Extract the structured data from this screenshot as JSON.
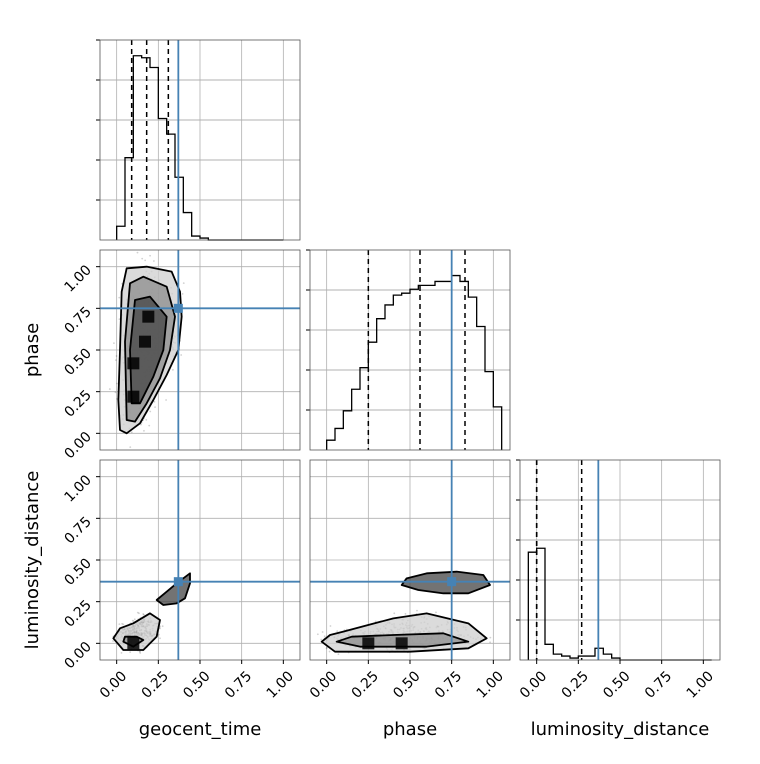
{
  "chart_data": {
    "type": "corner",
    "parameters": [
      "geocent_time",
      "phase",
      "luminosity_distance"
    ],
    "range": [
      -0.1,
      1.1
    ],
    "ticks": [
      0.0,
      0.25,
      0.5,
      0.75,
      1.0
    ],
    "tick_labels": [
      "0.00",
      "0.25",
      "0.50",
      "0.75",
      "1.00"
    ],
    "grid": true,
    "truth_color": "#4682b4",
    "truths": {
      "geocent_time": 0.37,
      "phase": 0.75,
      "luminosity_distance": 0.37
    },
    "quantiles": {
      "geocent_time": [
        0.09,
        0.18,
        0.31
      ],
      "phase": [
        0.25,
        0.56,
        0.83
      ],
      "luminosity_distance": [
        0.0,
        0.0,
        0.27
      ]
    },
    "histograms": {
      "geocent_time": {
        "bin_width": 0.05,
        "edges_start": 0.0,
        "heights": [
          0.07,
          0.42,
          0.94,
          0.93,
          0.88,
          0.62,
          0.54,
          0.32,
          0.14,
          0.02,
          0.01,
          0,
          0,
          0,
          0,
          0,
          0,
          0,
          0,
          0
        ]
      },
      "phase": {
        "bin_width": 0.05,
        "edges_start": 0.0,
        "heights": [
          0.05,
          0.11,
          0.2,
          0.31,
          0.42,
          0.55,
          0.67,
          0.74,
          0.79,
          0.8,
          0.82,
          0.84,
          0.84,
          0.86,
          0.86,
          0.89,
          0.86,
          0.78,
          0.63,
          0.4,
          0.22
        ]
      },
      "luminosity_distance": {
        "bin_width": 0.05,
        "edges_start": -0.05,
        "heights": [
          0.55,
          0.57,
          0.08,
          0.03,
          0.02,
          0.01,
          0.02,
          0.02,
          0.06,
          0.03,
          0.01,
          0,
          0,
          0,
          0,
          0,
          0,
          0,
          0,
          0,
          0,
          0
        ]
      }
    },
    "contours_2d": {
      "phase_vs_geocent_time": {
        "x": "geocent_time",
        "y": "phase",
        "levels": [
          [
            [
              0.02,
              0.02
            ],
            [
              0.06,
              0.0
            ],
            [
              0.14,
              0.06
            ],
            [
              0.22,
              0.2
            ],
            [
              0.3,
              0.35
            ],
            [
              0.37,
              0.5
            ],
            [
              0.39,
              0.7
            ],
            [
              0.38,
              0.85
            ],
            [
              0.33,
              0.97
            ],
            [
              0.18,
              1.0
            ],
            [
              0.06,
              0.99
            ],
            [
              0.03,
              0.85
            ],
            [
              0.02,
              0.5
            ],
            [
              0.01,
              0.2
            ]
          ],
          [
            [
              0.06,
              0.08
            ],
            [
              0.11,
              0.07
            ],
            [
              0.18,
              0.18
            ],
            [
              0.26,
              0.33
            ],
            [
              0.32,
              0.5
            ],
            [
              0.35,
              0.7
            ],
            [
              0.3,
              0.88
            ],
            [
              0.16,
              0.94
            ],
            [
              0.08,
              0.9
            ],
            [
              0.05,
              0.55
            ]
          ],
          [
            [
              0.09,
              0.18
            ],
            [
              0.14,
              0.18
            ],
            [
              0.22,
              0.34
            ],
            [
              0.28,
              0.5
            ],
            [
              0.3,
              0.7
            ],
            [
              0.2,
              0.82
            ],
            [
              0.11,
              0.8
            ],
            [
              0.08,
              0.5
            ]
          ]
        ],
        "density_peaks": [
          [
            0.1,
            0.22
          ],
          [
            0.1,
            0.42
          ],
          [
            0.17,
            0.55
          ],
          [
            0.19,
            0.7
          ]
        ]
      },
      "luminosity_distance_vs_geocent_time": {
        "x": "geocent_time",
        "y": "luminosity_distance",
        "levels": [
          [
            [
              -0.02,
              0.03
            ],
            [
              0.04,
              -0.04
            ],
            [
              0.16,
              -0.04
            ],
            [
              0.24,
              0.04
            ],
            [
              0.26,
              0.14
            ],
            [
              0.2,
              0.18
            ],
            [
              0.1,
              0.12
            ],
            [
              0.02,
              0.09
            ]
          ],
          [
            [
              0.04,
              0.01
            ],
            [
              0.1,
              -0.02
            ],
            [
              0.16,
              0.02
            ],
            [
              0.12,
              0.04
            ],
            [
              0.05,
              0.04
            ]
          ],
          [
            [
              0.24,
              0.26
            ],
            [
              0.3,
              0.31
            ],
            [
              0.36,
              0.36
            ],
            [
              0.44,
              0.42
            ],
            [
              0.44,
              0.36
            ],
            [
              0.41,
              0.27
            ],
            [
              0.36,
              0.24
            ],
            [
              0.28,
              0.23
            ]
          ]
        ],
        "density_peaks": [
          [
            0.1,
            0.0
          ]
        ]
      },
      "luminosity_distance_vs_phase": {
        "x": "phase",
        "y": "luminosity_distance",
        "levels": [
          [
            [
              -0.03,
              0.01
            ],
            [
              0.05,
              -0.05
            ],
            [
              0.5,
              -0.05
            ],
            [
              0.85,
              -0.03
            ],
            [
              0.96,
              0.03
            ],
            [
              0.85,
              0.12
            ],
            [
              0.6,
              0.18
            ],
            [
              0.4,
              0.15
            ],
            [
              0.1,
              0.07
            ],
            [
              0.02,
              0.05
            ]
          ],
          [
            [
              0.06,
              0.01
            ],
            [
              0.2,
              -0.02
            ],
            [
              0.6,
              -0.02
            ],
            [
              0.85,
              0.01
            ],
            [
              0.7,
              0.06
            ],
            [
              0.4,
              0.05
            ],
            [
              0.15,
              0.04
            ]
          ],
          [
            [
              0.45,
              0.35
            ],
            [
              0.55,
              0.32
            ],
            [
              0.7,
              0.3
            ],
            [
              0.85,
              0.3
            ],
            [
              0.98,
              0.35
            ],
            [
              0.94,
              0.41
            ],
            [
              0.78,
              0.43
            ],
            [
              0.6,
              0.42
            ],
            [
              0.48,
              0.39
            ]
          ]
        ],
        "density_peaks": [
          [
            0.25,
            0.0
          ],
          [
            0.45,
            0.0
          ]
        ]
      }
    }
  }
}
